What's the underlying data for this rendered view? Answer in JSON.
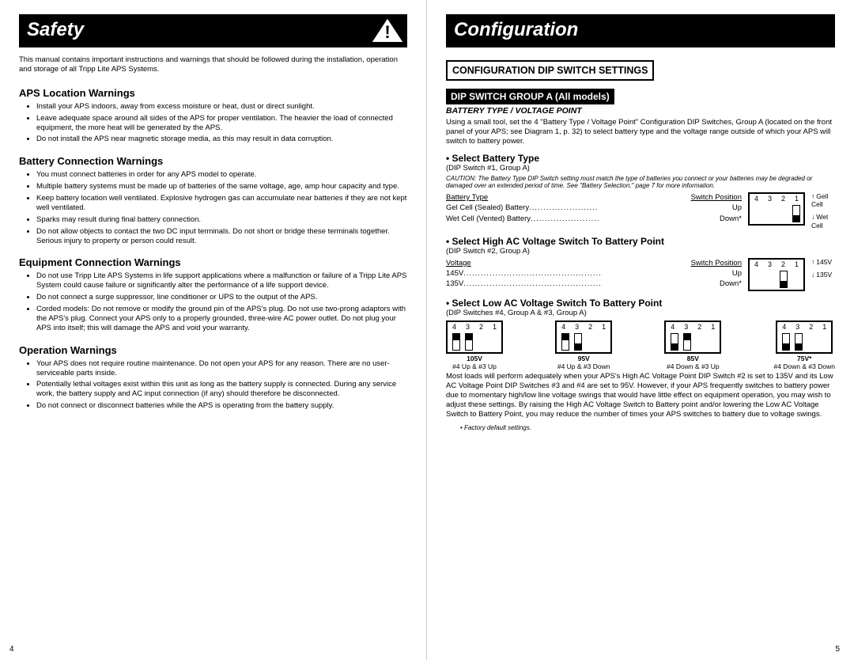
{
  "left": {
    "banner": "Safety",
    "intro": "This manual contains important instructions and warnings that should be followed during the installation, operation and storage of all Tripp Lite APS Systems.",
    "sections": [
      {
        "title": "APS Location Warnings",
        "items": [
          "Install your APS indoors, away from excess moisture or heat, dust or direct sunlight.",
          "Leave adequate space around all sides of the APS for proper ventilation. The heavier the load of connected equipment, the more heat will be generated by the APS.",
          "Do not install the APS near magnetic storage media, as this may result in data corruption."
        ]
      },
      {
        "title": "Battery Connection Warnings",
        "items": [
          "You must connect batteries in order for any APS model to operate.",
          "Multiple battery systems must be made up of batteries of the same voltage, age, amp hour capacity and type.",
          "Keep battery location well ventilated. Explosive hydrogen gas can accumulate near batteries if they are not kept well ventilated.",
          "Sparks may result during final battery connection.",
          "Do not allow objects to contact the two DC input terminals. Do not short or bridge these terminals together. Serious injury to property or person could result."
        ]
      },
      {
        "title": "Equipment Connection Warnings",
        "items": [
          "Do not use Tripp Lite APS Systems in life support applications where a malfunction or failure of a Tripp Lite APS System could cause failure or significantly alter the performance of a life support device.",
          "Do not connect a surge suppressor, line conditioner or UPS to the output of the APS.",
          "Corded models: Do not remove or modify the ground pin of the APS's plug. Do not use two-prong adaptors with the APS's plug. Connect your APS only to a properly grounded, three-wire AC power outlet. Do not plug your APS into itself; this will damage the APS and void your warranty."
        ]
      },
      {
        "title": "Operation Warnings",
        "items": [
          "Your APS does not require routine maintenance. Do not open your APS for any reason. There are no user-serviceable parts inside.",
          "Potentially lethal voltages exist within this unit as long as the battery supply is connected. During any service work, the battery supply and AC input connection (if any) should therefore be disconnected.",
          "Do not connect or disconnect batteries while the APS is operating from the battery supply."
        ]
      }
    ],
    "page_num": "4"
  },
  "right": {
    "banner": "Configuration",
    "box_heading": "CONFIGURATION DIP SWITCH SETTINGS",
    "group_heading": "DIP SWITCH GROUP A (All models)",
    "sub_ital": "BATTERY TYPE / VOLTAGE POINT",
    "intro": "Using a small tool, set the 4 \"Battery Type / Voltage Point\" Configuration DIP Switches, Group A (located on the front panel of your APS; see Diagram 1, p. 32) to select battery type and the voltage range outside of which your APS will switch to battery power.",
    "sect1": {
      "title": "• Select Battery Type",
      "paren": "(DIP Switch #1, Group A)",
      "caution": "CAUTION: The Battery Type DIP Switch setting must match the type of batteries you connect or your batteries may be degraded or damaged over an extended period of time. See \"Battery Selection,\" page 7 for more information.",
      "col_l": "Battery Type",
      "col_r": "Switch Position",
      "rows": [
        {
          "label": "Gel Cell (Sealed) Battery",
          "pos": "Up"
        },
        {
          "label": "Wet Cell (Vented) Battery",
          "pos": "Down*"
        }
      ],
      "dip_nums": [
        "4",
        "3",
        "2",
        "1"
      ],
      "side_top": "Gell Cell",
      "side_bot": "Wet Cell"
    },
    "sect2": {
      "title": "• Select High AC Voltage Switch To Battery Point",
      "paren": "(DIP Switch #2, Group A)",
      "col_l": "Voltage",
      "col_r": "Switch Position",
      "rows": [
        {
          "label": "145V",
          "pos": "Up"
        },
        {
          "label": "135V",
          "pos": "Down*"
        }
      ],
      "dip_nums": [
        "4",
        "3",
        "2",
        "1"
      ],
      "side_top": "145V",
      "side_bot": "135V"
    },
    "sect3": {
      "title": "• Select Low AC Voltage Switch To Battery Point",
      "paren": "(DIP Switches #4, Group A & #3, Group A)",
      "dip_nums": [
        "4",
        "3",
        "2",
        "1"
      ],
      "items": [
        {
          "v": "105V",
          "note": "#4 Up & #3 Up",
          "s4": "up",
          "s3": "up"
        },
        {
          "v": "95V",
          "note": "#4 Up & #3 Down",
          "s4": "up",
          "s3": "down"
        },
        {
          "v": "85V",
          "note": "#4 Down & #3 Up",
          "s4": "down",
          "s3": "up"
        },
        {
          "v": "75V*",
          "note": "#4 Down & #3 Down",
          "s4": "down",
          "s3": "down"
        }
      ]
    },
    "closing": "Most loads will perform adequately when your APS's High AC Voltage Point DIP Switch #2 is set to 135V and its Low AC Voltage Point DIP Switches #3 and #4 are set to 95V. However, if your APS frequently switches to battery power due to momentary high/low line voltage swings that would have little effect on equipment operation, you may wish to adjust these settings. By raising the High AC Voltage Switch to Battery point and/or lowering the Low AC Voltage Switch to Battery Point, you may reduce the number of times your APS switches to battery due to voltage swings.",
    "footnote": "Factory default settings.",
    "page_num": "5"
  }
}
